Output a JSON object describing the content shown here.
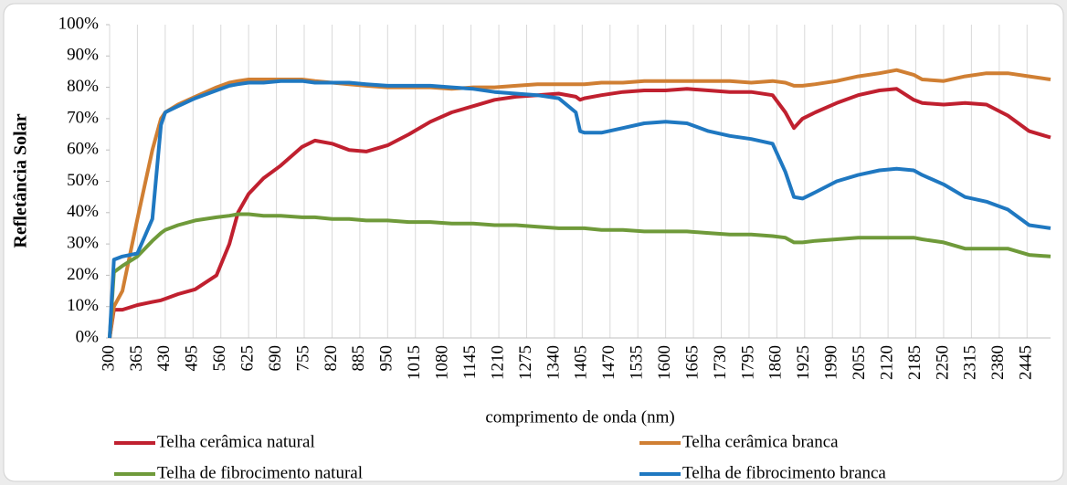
{
  "chart_data": {
    "type": "line",
    "xlabel": "comprimento de onda (nm)",
    "ylabel": "Refletância Solar",
    "x": [
      300,
      310,
      330,
      365,
      400,
      420,
      430,
      460,
      500,
      550,
      580,
      600,
      625,
      660,
      700,
      750,
      780,
      820,
      860,
      900,
      950,
      1000,
      1050,
      1100,
      1150,
      1200,
      1250,
      1300,
      1350,
      1390,
      1400,
      1410,
      1450,
      1500,
      1550,
      1600,
      1650,
      1700,
      1750,
      1800,
      1850,
      1880,
      1900,
      1920,
      1950,
      2000,
      2050,
      2100,
      2140,
      2180,
      2200,
      2250,
      2300,
      2350,
      2400,
      2450,
      2500
    ],
    "series": [
      {
        "name": "Telha cerâmica natural",
        "color": "#c0202f",
        "values": [
          0,
          9,
          9,
          10.5,
          11.5,
          12,
          12.5,
          14,
          15.5,
          20,
          30,
          40,
          46,
          51,
          55,
          61,
          63,
          62,
          60,
          59.5,
          61.5,
          65,
          69,
          72,
          74,
          76,
          77,
          77.5,
          78,
          77,
          76,
          76.5,
          77.5,
          78.5,
          79,
          79,
          79.5,
          79,
          78.5,
          78.5,
          77.5,
          72,
          67,
          70,
          72,
          75,
          77.5,
          79,
          79.5,
          76,
          75,
          74.5,
          75,
          74.5,
          71,
          66,
          64
        ]
      },
      {
        "name": "Telha cerâmica branca",
        "color": "#d07f33",
        "values": [
          0,
          10,
          15,
          38,
          60,
          70,
          72,
          74.5,
          77,
          80,
          81.5,
          82,
          82.5,
          82.5,
          82.5,
          82.5,
          82,
          81.5,
          81,
          80.5,
          80,
          80,
          80,
          79.5,
          80,
          80,
          80.5,
          81,
          81,
          81,
          81,
          81,
          81.5,
          81.5,
          82,
          82,
          82,
          82,
          82,
          81.5,
          82,
          81.5,
          80.5,
          80.5,
          81,
          82,
          83.5,
          84.5,
          85.5,
          84,
          82.5,
          82,
          83.5,
          84.5,
          84.5,
          83.5,
          82.5
        ]
      },
      {
        "name": "Telha de fibrocimento natural",
        "color": "#6f9a3a",
        "values": [
          0,
          21,
          23,
          26,
          31,
          33.5,
          34.5,
          36,
          37.5,
          38.5,
          39,
          39.5,
          39.5,
          39,
          39,
          38.5,
          38.5,
          38,
          38,
          37.5,
          37.5,
          37,
          37,
          36.5,
          36.5,
          36,
          36,
          35.5,
          35,
          35,
          35,
          35,
          34.5,
          34.5,
          34,
          34,
          34,
          33.5,
          33,
          33,
          32.5,
          32,
          30.5,
          30.5,
          31,
          31.5,
          32,
          32,
          32,
          32,
          31.5,
          30.5,
          28.5,
          28.5,
          28.5,
          26.5,
          26
        ]
      },
      {
        "name": "Telha de fibrocimento branca",
        "color": "#1f78c1",
        "values": [
          0,
          25,
          26,
          27,
          38,
          68,
          72,
          74,
          76.5,
          79,
          80.5,
          81,
          81.5,
          81.5,
          82,
          82,
          81.5,
          81.5,
          81.5,
          81,
          80.5,
          80.5,
          80.5,
          80,
          79.5,
          78.5,
          78,
          77.5,
          76.5,
          72,
          66,
          65.5,
          65.5,
          67,
          68.5,
          69,
          68.5,
          66,
          64.5,
          63.5,
          62,
          53,
          45,
          44.5,
          46.5,
          50,
          52,
          53.5,
          54,
          53.5,
          52,
          49,
          45,
          43.5,
          41,
          36,
          35
        ]
      }
    ],
    "xlim": [
      300,
      2500
    ],
    "xticks": [
      300,
      365,
      430,
      495,
      560,
      625,
      690,
      755,
      820,
      885,
      950,
      1015,
      1080,
      1145,
      1210,
      1275,
      1340,
      1405,
      1470,
      1535,
      1600,
      1665,
      1730,
      1795,
      1860,
      1925,
      1990,
      2055,
      2120,
      2185,
      2250,
      2315,
      2380,
      2445
    ],
    "ylim": [
      0,
      100
    ],
    "yticks": [
      {
        "value": 0,
        "label": "0%"
      },
      {
        "value": 10,
        "label": "10%"
      },
      {
        "value": 20,
        "label": "20%"
      },
      {
        "value": 30,
        "label": "30%"
      },
      {
        "value": 40,
        "label": "40%"
      },
      {
        "value": 50,
        "label": "50%"
      },
      {
        "value": 60,
        "label": "60%"
      },
      {
        "value": 70,
        "label": "70%"
      },
      {
        "value": 80,
        "label": "80%"
      },
      {
        "value": 90,
        "label": "90%"
      },
      {
        "value": 100,
        "label": "100%"
      }
    ],
    "grid": "x"
  }
}
